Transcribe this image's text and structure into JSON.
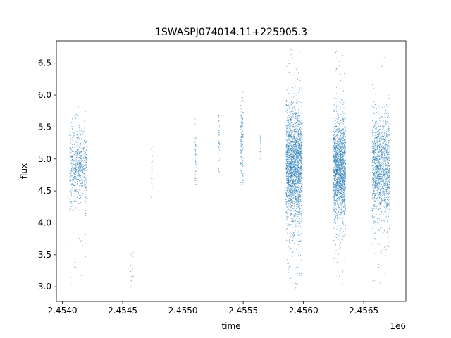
{
  "chart_data": {
    "type": "scatter",
    "title": "1SWASPJ074014.11+225905.3",
    "xlabel": "time",
    "ylabel": "flux",
    "x_offset_label": "1e6",
    "xlim": [
      2453950,
      2456850
    ],
    "ylim": [
      2.77,
      6.85
    ],
    "x_ticks": [
      2454000,
      2454500,
      2455000,
      2455500,
      2456000,
      2456500
    ],
    "x_tick_labels": [
      "2.4540",
      "2.4545",
      "2.4550",
      "2.4555",
      "2.4560",
      "2.4565"
    ],
    "y_ticks": [
      3.0,
      3.5,
      4.0,
      4.5,
      5.0,
      5.5,
      6.0,
      6.5
    ],
    "y_tick_labels": [
      "3.0",
      "3.5",
      "4.0",
      "4.5",
      "5.0",
      "5.5",
      "6.0",
      "6.5"
    ],
    "grid": false,
    "legend": "none",
    "marker_color": "#1f77b4",
    "segments": [
      {
        "x_start": 2454060,
        "x_end": 2454200,
        "y_center": 4.9,
        "y_spread": 0.3,
        "y_min": 3.0,
        "y_max": 5.85,
        "n": 700
      },
      {
        "x_start": 2454560,
        "x_end": 2454590,
        "y_center": 3.2,
        "y_spread": 0.2,
        "y_min": 2.95,
        "y_max": 3.7,
        "n": 25
      },
      {
        "x_start": 2454738,
        "x_end": 2454746,
        "y_center": 4.9,
        "y_spread": 0.3,
        "y_min": 4.4,
        "y_max": 5.4,
        "n": 30
      },
      {
        "x_start": 2455100,
        "x_end": 2455110,
        "y_center": 5.1,
        "y_spread": 0.3,
        "y_min": 4.6,
        "y_max": 5.7,
        "n": 40
      },
      {
        "x_start": 2455295,
        "x_end": 2455305,
        "y_center": 5.3,
        "y_spread": 0.3,
        "y_min": 4.8,
        "y_max": 5.9,
        "n": 35
      },
      {
        "x_start": 2455480,
        "x_end": 2455500,
        "y_center": 5.3,
        "y_spread": 0.3,
        "y_min": 4.5,
        "y_max": 6.1,
        "n": 160
      },
      {
        "x_start": 2455640,
        "x_end": 2455648,
        "y_center": 5.2,
        "y_spread": 0.1,
        "y_min": 5.0,
        "y_max": 5.4,
        "n": 15
      },
      {
        "x_start": 2455855,
        "x_end": 2455990,
        "y_center": 4.9,
        "y_spread": 0.45,
        "y_min": 2.95,
        "y_max": 6.75,
        "n": 2400
      },
      {
        "x_start": 2456250,
        "x_end": 2456350,
        "y_center": 4.85,
        "y_spread": 0.4,
        "y_min": 2.95,
        "y_max": 6.7,
        "n": 1900
      },
      {
        "x_start": 2456570,
        "x_end": 2456720,
        "y_center": 4.85,
        "y_spread": 0.4,
        "y_min": 2.95,
        "y_max": 6.65,
        "n": 1500
      }
    ]
  }
}
